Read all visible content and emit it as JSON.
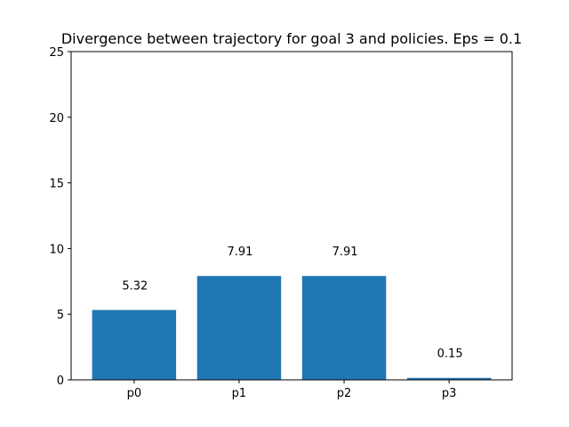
{
  "chart_data": {
    "type": "bar",
    "title": "Divergence between trajectory for goal 3 and policies. Eps = 0.1",
    "xlabel": "",
    "ylabel": "",
    "categories": [
      "p0",
      "p1",
      "p2",
      "p3"
    ],
    "values": [
      5.32,
      7.91,
      7.91,
      0.15
    ],
    "value_labels": [
      "5.32",
      "7.91",
      "7.91",
      "0.15"
    ],
    "ylim": [
      0,
      25
    ],
    "yticks": [
      0,
      5,
      10,
      15,
      20,
      25
    ],
    "bar_color": "#1f77b4",
    "grid": false,
    "legend": "none"
  }
}
